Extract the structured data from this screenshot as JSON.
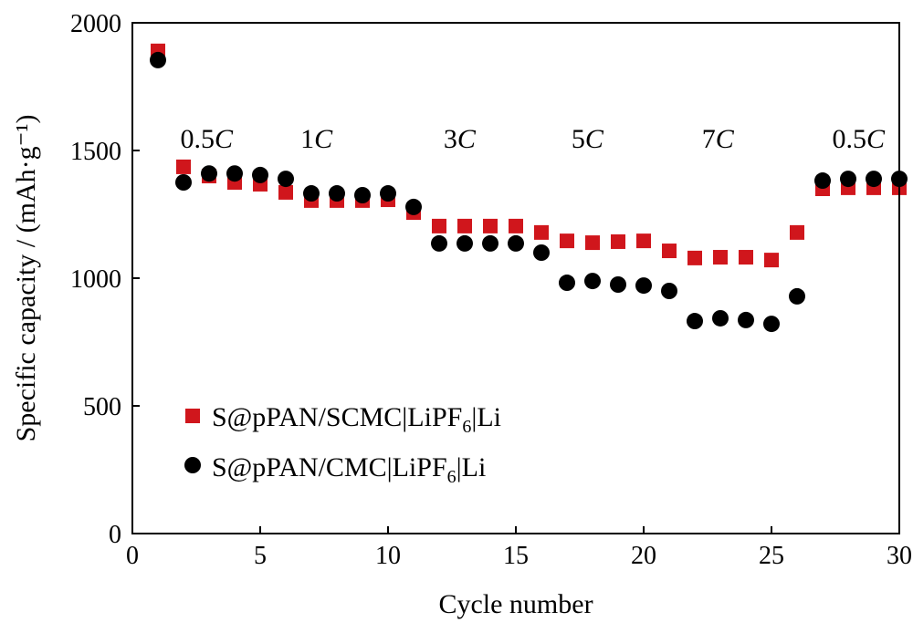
{
  "chart_data": {
    "type": "scatter",
    "xlabel": "Cycle number",
    "ylabel": "Specific capacity / (mAh·g⁻¹)",
    "xlim": [
      0,
      30
    ],
    "ylim": [
      0,
      2000
    ],
    "xticks": [
      0,
      5,
      10,
      15,
      20,
      25,
      30
    ],
    "yticks": [
      0,
      500,
      1000,
      1500,
      2000
    ],
    "grid": false,
    "legend_position": "bottom-left",
    "annotations": [
      {
        "text": "0.5",
        "italic": "C",
        "x": 2.9,
        "y": 1510
      },
      {
        "text": "1",
        "italic": "C",
        "x": 7.2,
        "y": 1510
      },
      {
        "text": "3",
        "italic": "C",
        "x": 12.8,
        "y": 1510
      },
      {
        "text": "5",
        "italic": "C",
        "x": 17.8,
        "y": 1510
      },
      {
        "text": "7",
        "italic": "C",
        "x": 22.9,
        "y": 1510
      },
      {
        "text": "0.5",
        "italic": "C",
        "x": 28.4,
        "y": 1510
      }
    ],
    "series": [
      {
        "name": "S@pPAN/SCMC|LiPF6|Li",
        "legend_parts": [
          "S@pPAN/SCMC|LiPF",
          "6",
          "|Li"
        ],
        "marker": "square",
        "color": "#d0161c",
        "x": [
          1,
          2,
          3,
          4,
          5,
          6,
          7,
          8,
          9,
          10,
          11,
          12,
          13,
          14,
          15,
          16,
          17,
          18,
          19,
          20,
          21,
          22,
          23,
          24,
          25,
          26,
          27,
          28,
          29,
          30
        ],
        "y": [
          1890,
          1436,
          1400,
          1375,
          1368,
          1336,
          1304,
          1304,
          1304,
          1307,
          1257,
          1204,
          1204,
          1204,
          1204,
          1179,
          1146,
          1139,
          1143,
          1146,
          1107,
          1079,
          1082,
          1082,
          1071,
          1179,
          1350,
          1354,
          1354,
          1354
        ]
      },
      {
        "name": "S@pPAN/CMC|LiPF6|Li",
        "legend_parts": [
          "S@pPAN/CMC|LiPF",
          "6",
          "|Li"
        ],
        "marker": "circle",
        "color": "#000000",
        "x": [
          1,
          2,
          3,
          4,
          5,
          6,
          7,
          8,
          9,
          10,
          11,
          12,
          13,
          14,
          15,
          16,
          17,
          18,
          19,
          20,
          21,
          22,
          23,
          24,
          25,
          26,
          27,
          28,
          29,
          30
        ],
        "y": [
          1854,
          1375,
          1410,
          1410,
          1404,
          1389,
          1332,
          1332,
          1325,
          1332,
          1279,
          1136,
          1136,
          1136,
          1136,
          1100,
          982,
          989,
          975,
          971,
          950,
          832,
          843,
          836,
          821,
          929,
          1382,
          1389,
          1389,
          1389
        ]
      }
    ]
  }
}
